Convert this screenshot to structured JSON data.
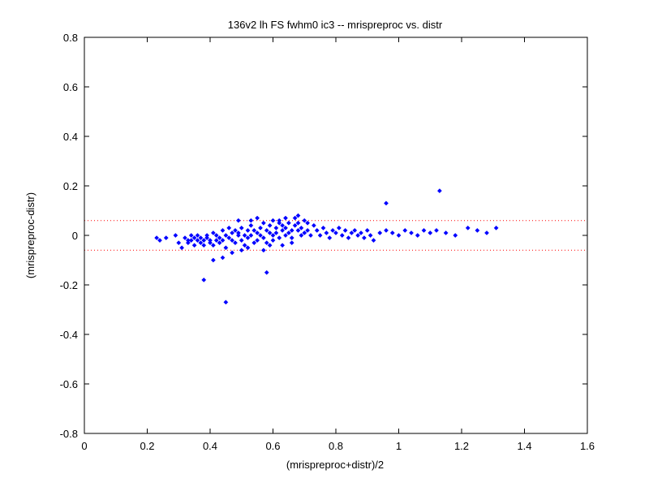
{
  "chart_data": {
    "type": "scatter",
    "title": "136v2 lh FS fwhm0 ic3 -- mrispreproc vs. distr",
    "xlabel": "(mrispreproc+distr)/2",
    "ylabel": "(mrispreproc-distr)",
    "xlim": [
      0,
      1.6
    ],
    "ylim": [
      -0.8,
      0.8
    ],
    "x_ticks": [
      "0",
      "0.2",
      "0.4",
      "0.6",
      "0.8",
      "1",
      "1.2",
      "1.4",
      "1.6"
    ],
    "y_ticks": [
      "-0.8",
      "-0.6",
      "-0.4",
      "-0.2",
      "0",
      "0.2",
      "0.4",
      "0.6",
      "0.8"
    ],
    "grid": false,
    "marker": "diamond",
    "marker_color": "#0000ff",
    "reference_lines": [
      {
        "y": 0.06,
        "style": "dotted",
        "color": "#ff0000"
      },
      {
        "y": -0.06,
        "style": "dotted",
        "color": "#ff0000"
      }
    ],
    "series": [
      {
        "x": [
          0.23,
          0.24,
          0.26,
          0.29,
          0.3,
          0.31,
          0.32,
          0.33,
          0.33,
          0.34,
          0.34,
          0.35,
          0.35,
          0.36,
          0.36,
          0.37,
          0.37,
          0.38,
          0.38,
          0.39,
          0.39,
          0.4,
          0.4,
          0.41,
          0.41,
          0.42,
          0.42,
          0.43,
          0.43,
          0.44,
          0.44,
          0.45,
          0.45,
          0.46,
          0.46,
          0.47,
          0.47,
          0.48,
          0.48,
          0.49,
          0.49,
          0.5,
          0.5,
          0.51,
          0.51,
          0.52,
          0.52,
          0.53,
          0.53,
          0.54,
          0.54,
          0.55,
          0.55,
          0.56,
          0.56,
          0.57,
          0.57,
          0.58,
          0.58,
          0.59,
          0.59,
          0.6,
          0.6,
          0.61,
          0.61,
          0.62,
          0.62,
          0.63,
          0.63,
          0.64,
          0.64,
          0.65,
          0.65,
          0.66,
          0.66,
          0.67,
          0.67,
          0.68,
          0.68,
          0.69,
          0.69,
          0.7,
          0.7,
          0.71,
          0.72,
          0.73,
          0.74,
          0.75,
          0.76,
          0.77,
          0.78,
          0.79,
          0.8,
          0.81,
          0.82,
          0.83,
          0.84,
          0.85,
          0.86,
          0.87,
          0.88,
          0.89,
          0.9,
          0.91,
          0.92,
          0.94,
          0.96,
          0.98,
          1.0,
          1.02,
          1.04,
          1.06,
          1.08,
          1.1,
          1.12,
          1.15,
          1.18,
          1.22,
          1.25,
          1.28,
          1.31,
          0.38,
          0.45,
          0.41,
          0.44,
          0.58,
          0.96,
          1.13,
          0.68,
          0.55,
          0.6,
          0.52,
          0.63,
          0.57,
          0.49,
          0.66,
          0.71,
          0.47,
          0.5,
          0.64,
          0.53,
          0.59,
          0.62
        ],
        "y": [
          -0.01,
          -0.02,
          -0.01,
          0.0,
          -0.03,
          -0.05,
          -0.01,
          -0.02,
          -0.03,
          0.0,
          -0.02,
          -0.01,
          -0.04,
          -0.02,
          0.0,
          -0.03,
          -0.01,
          -0.02,
          -0.04,
          0.0,
          -0.01,
          -0.03,
          -0.02,
          0.01,
          -0.04,
          -0.02,
          0.0,
          -0.01,
          -0.03,
          0.02,
          -0.02,
          0.0,
          -0.05,
          0.03,
          -0.01,
          0.01,
          -0.02,
          0.02,
          -0.03,
          0.0,
          0.01,
          -0.02,
          0.03,
          0.0,
          -0.04,
          0.02,
          -0.01,
          0.04,
          0.0,
          -0.03,
          0.02,
          0.01,
          -0.02,
          0.03,
          0.0,
          0.05,
          -0.01,
          0.02,
          -0.03,
          0.01,
          0.04,
          0.0,
          -0.02,
          0.03,
          0.01,
          0.06,
          -0.01,
          0.02,
          0.04,
          0.0,
          0.03,
          0.05,
          0.01,
          0.02,
          -0.01,
          0.04,
          0.07,
          0.02,
          0.05,
          0.0,
          0.03,
          0.01,
          0.06,
          0.02,
          0.0,
          0.04,
          0.02,
          0.0,
          0.03,
          0.01,
          -0.01,
          0.02,
          0.01,
          0.03,
          0.0,
          0.02,
          -0.01,
          0.01,
          0.02,
          0.0,
          0.01,
          -0.01,
          0.02,
          0.0,
          -0.02,
          0.01,
          0.02,
          0.01,
          0.0,
          0.02,
          0.01,
          0.0,
          0.02,
          0.01,
          0.02,
          0.01,
          0.0,
          0.03,
          0.02,
          0.01,
          0.03,
          -0.18,
          -0.27,
          -0.1,
          -0.09,
          -0.15,
          0.13,
          0.18,
          0.08,
          0.07,
          0.06,
          -0.05,
          -0.04,
          -0.06,
          0.06,
          -0.03,
          0.05,
          -0.07,
          -0.06,
          0.07,
          0.06,
          -0.04,
          0.05
        ]
      }
    ]
  }
}
